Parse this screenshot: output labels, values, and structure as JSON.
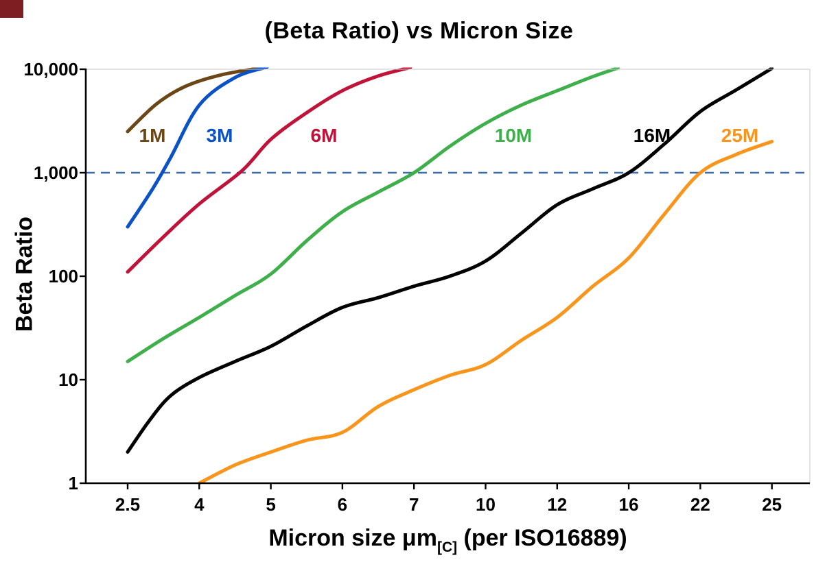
{
  "chart_data": {
    "type": "line",
    "title": "(Beta Ratio) vs Micron Size",
    "ylabel": "Beta Ratio",
    "xlabel": "Micron size μm[C] (per ISO16889)",
    "xlabel_parts": {
      "main": "Micron size μm",
      "sub": "[C]",
      "rest": " (per ISO16889)"
    },
    "y_scale": "log",
    "ylim": [
      1,
      10000
    ],
    "y_ticks": [
      {
        "value": 10000,
        "label": "10,000"
      },
      {
        "value": 1000,
        "label": "1,000"
      },
      {
        "value": 100,
        "label": "100"
      },
      {
        "value": 10,
        "label": "10"
      },
      {
        "value": 1,
        "label": "1"
      }
    ],
    "x_categories": [
      "2.5",
      "4",
      "5",
      "6",
      "7",
      "10",
      "12",
      "16",
      "22",
      "25"
    ],
    "x_scale": "categorical-even-spacing",
    "grid": false,
    "legend_position": "inline-curve-labels",
    "axis_color": "#000000",
    "reference_line": {
      "value": 1000,
      "color": "#3a6ca8",
      "style": "dashed"
    },
    "points_note": "series points are [category_index, beta_ratio]; category_index 0..9 maps to x_categories (fractional = between ticks)",
    "series": [
      {
        "name": "1M",
        "color": "#6b4616",
        "label_pos": [
          222,
          199
        ],
        "points": [
          [
            0,
            2500
          ],
          [
            0.4,
            4600
          ],
          [
            0.8,
            6800
          ],
          [
            1.3,
            8800
          ],
          [
            1.9,
            10400
          ]
        ]
      },
      {
        "name": "3M",
        "color": "#0b52c4",
        "label_pos": [
          320,
          199
        ],
        "points": [
          [
            0,
            300
          ],
          [
            0.35,
            700
          ],
          [
            0.6,
            1400
          ],
          [
            1,
            4500
          ],
          [
            1.5,
            8300
          ],
          [
            1.95,
            10500
          ]
        ]
      },
      {
        "name": "6M",
        "color": "#c01339",
        "label_pos": [
          472,
          199
        ],
        "points": [
          [
            0,
            110
          ],
          [
            0.5,
            240
          ],
          [
            1,
            500
          ],
          [
            1.6,
            1050
          ],
          [
            2,
            2100
          ],
          [
            2.5,
            3800
          ],
          [
            3,
            6200
          ],
          [
            3.5,
            8600
          ],
          [
            3.95,
            10400
          ]
        ]
      },
      {
        "name": "10M",
        "color": "#3faf4c",
        "label_pos": [
          748,
          199
        ],
        "points": [
          [
            0,
            15
          ],
          [
            0.5,
            25
          ],
          [
            1,
            40
          ],
          [
            1.5,
            65
          ],
          [
            2,
            105
          ],
          [
            2.5,
            220
          ],
          [
            3,
            420
          ],
          [
            3.5,
            650
          ],
          [
            4,
            1000
          ],
          [
            4.5,
            1800
          ],
          [
            5,
            3000
          ],
          [
            5.5,
            4500
          ],
          [
            6,
            6200
          ],
          [
            6.5,
            8500
          ],
          [
            6.85,
            10300
          ]
        ]
      },
      {
        "name": "16M",
        "color": "#000000",
        "label_pos": [
          950,
          199
        ],
        "points": [
          [
            0,
            2
          ],
          [
            0.3,
            4
          ],
          [
            0.6,
            7
          ],
          [
            1,
            10.5
          ],
          [
            1.5,
            15
          ],
          [
            2,
            21
          ],
          [
            2.5,
            33
          ],
          [
            3,
            50
          ],
          [
            3.5,
            62
          ],
          [
            4,
            80
          ],
          [
            4.5,
            100
          ],
          [
            5,
            140
          ],
          [
            5.5,
            260
          ],
          [
            6,
            490
          ],
          [
            6.5,
            700
          ],
          [
            7,
            1000
          ],
          [
            7.5,
            1900
          ],
          [
            8,
            3900
          ],
          [
            8.5,
            6300
          ],
          [
            9,
            10200
          ]
        ]
      },
      {
        "name": "25M",
        "color": "#f8951d",
        "label_pos": [
          1078,
          199
        ],
        "points": [
          [
            1,
            1
          ],
          [
            1.5,
            1.5
          ],
          [
            2,
            2
          ],
          [
            2.5,
            2.6
          ],
          [
            3,
            3.1
          ],
          [
            3.5,
            5.5
          ],
          [
            4,
            8
          ],
          [
            4.5,
            11
          ],
          [
            5,
            14
          ],
          [
            5.5,
            24
          ],
          [
            6,
            40
          ],
          [
            6.5,
            80
          ],
          [
            7,
            150
          ],
          [
            7.5,
            400
          ],
          [
            8,
            1000
          ],
          [
            8.5,
            1500
          ],
          [
            9,
            2000
          ]
        ]
      }
    ]
  }
}
